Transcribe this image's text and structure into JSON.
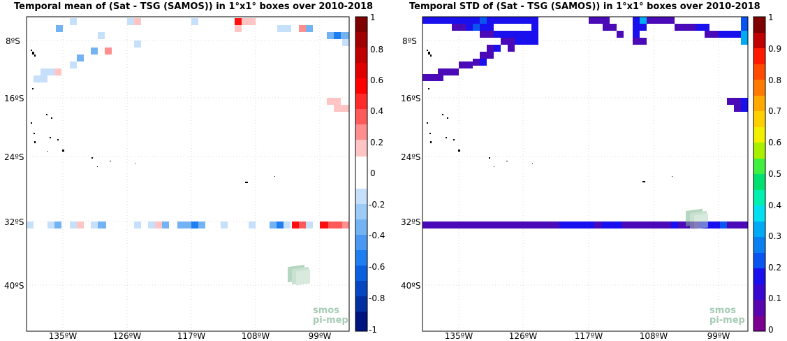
{
  "panels": [
    {
      "title": "Temporal mean of (Sat - TSG (SAMOS)) in 1°x1° boxes over 2010-2018",
      "lat_ticks": [
        "8ºS",
        "16ºS",
        "24ºS",
        "32ºS",
        "40ºS"
      ],
      "lon_ticks": [
        "135ºW",
        "126ºW",
        "117ºW",
        "108ºW",
        "99ºW"
      ],
      "colorbar_ticks": [
        "1",
        "0.8",
        "0.6",
        "0.4",
        "0.2",
        "0",
        "-0.2",
        "-0.4",
        "-0.6",
        "-0.8",
        "-1"
      ],
      "logo": {
        "line1": "smos",
        "line2": "pi-mep"
      }
    },
    {
      "title": "Temporal STD of (Sat - TSG (SAMOS)) in 1°x1° boxes over 2010-2018",
      "lat_ticks": [
        "8ºS",
        "16ºS",
        "24ºS",
        "32ºS",
        "40ºS"
      ],
      "lon_ticks": [
        "135ºW",
        "126ºW",
        "117ºW",
        "108ºW",
        "99ºW"
      ],
      "colorbar_ticks": [
        "1",
        "0.9",
        "0.8",
        "0.7",
        "0.6",
        "0.5",
        "0.4",
        "0.3",
        "0.2",
        "0.1",
        "0"
      ],
      "logo": {
        "line1": "smos",
        "line2": "pi-mep"
      }
    }
  ]
}
